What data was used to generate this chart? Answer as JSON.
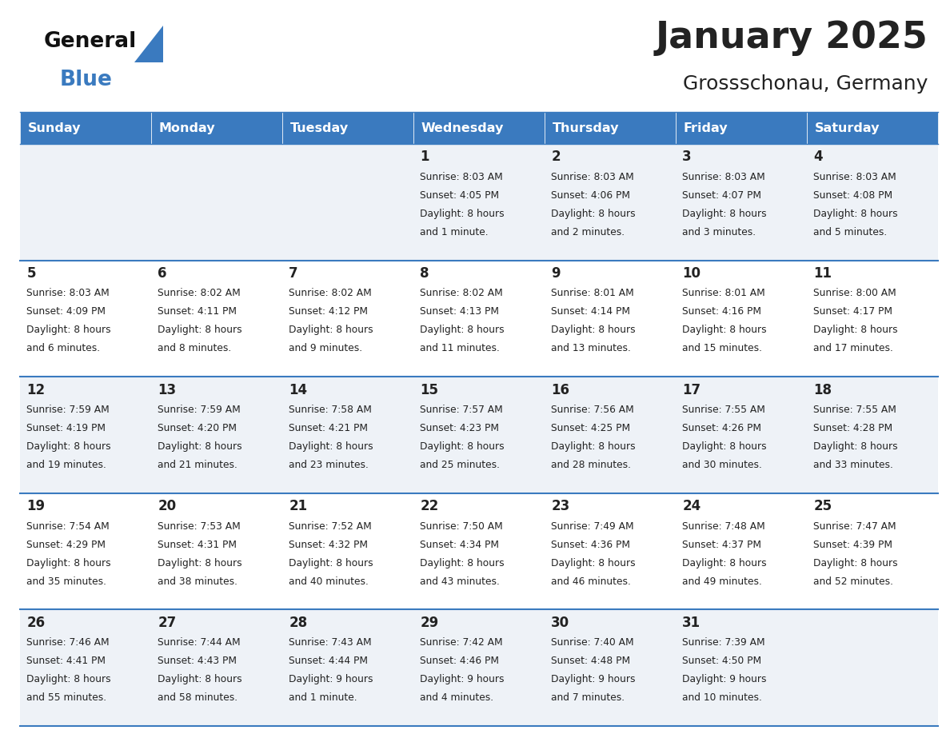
{
  "title": "January 2025",
  "subtitle": "Grossschonau, Germany",
  "header_color": "#3a7abf",
  "header_text_color": "#ffffff",
  "cell_bg_even": "#eef2f7",
  "cell_bg_odd": "#ffffff",
  "row_line_color": "#3a7abf",
  "text_color": "#222222",
  "day_names": [
    "Sunday",
    "Monday",
    "Tuesday",
    "Wednesday",
    "Thursday",
    "Friday",
    "Saturday"
  ],
  "days": [
    {
      "day": 1,
      "col": 3,
      "row": 0,
      "sunrise": "8:03 AM",
      "sunset": "4:05 PM",
      "dl1": "Daylight: 8 hours",
      "dl2": "and 1 minute."
    },
    {
      "day": 2,
      "col": 4,
      "row": 0,
      "sunrise": "8:03 AM",
      "sunset": "4:06 PM",
      "dl1": "Daylight: 8 hours",
      "dl2": "and 2 minutes."
    },
    {
      "day": 3,
      "col": 5,
      "row": 0,
      "sunrise": "8:03 AM",
      "sunset": "4:07 PM",
      "dl1": "Daylight: 8 hours",
      "dl2": "and 3 minutes."
    },
    {
      "day": 4,
      "col": 6,
      "row": 0,
      "sunrise": "8:03 AM",
      "sunset": "4:08 PM",
      "dl1": "Daylight: 8 hours",
      "dl2": "and 5 minutes."
    },
    {
      "day": 5,
      "col": 0,
      "row": 1,
      "sunrise": "8:03 AM",
      "sunset": "4:09 PM",
      "dl1": "Daylight: 8 hours",
      "dl2": "and 6 minutes."
    },
    {
      "day": 6,
      "col": 1,
      "row": 1,
      "sunrise": "8:02 AM",
      "sunset": "4:11 PM",
      "dl1": "Daylight: 8 hours",
      "dl2": "and 8 minutes."
    },
    {
      "day": 7,
      "col": 2,
      "row": 1,
      "sunrise": "8:02 AM",
      "sunset": "4:12 PM",
      "dl1": "Daylight: 8 hours",
      "dl2": "and 9 minutes."
    },
    {
      "day": 8,
      "col": 3,
      "row": 1,
      "sunrise": "8:02 AM",
      "sunset": "4:13 PM",
      "dl1": "Daylight: 8 hours",
      "dl2": "and 11 minutes."
    },
    {
      "day": 9,
      "col": 4,
      "row": 1,
      "sunrise": "8:01 AM",
      "sunset": "4:14 PM",
      "dl1": "Daylight: 8 hours",
      "dl2": "and 13 minutes."
    },
    {
      "day": 10,
      "col": 5,
      "row": 1,
      "sunrise": "8:01 AM",
      "sunset": "4:16 PM",
      "dl1": "Daylight: 8 hours",
      "dl2": "and 15 minutes."
    },
    {
      "day": 11,
      "col": 6,
      "row": 1,
      "sunrise": "8:00 AM",
      "sunset": "4:17 PM",
      "dl1": "Daylight: 8 hours",
      "dl2": "and 17 minutes."
    },
    {
      "day": 12,
      "col": 0,
      "row": 2,
      "sunrise": "7:59 AM",
      "sunset": "4:19 PM",
      "dl1": "Daylight: 8 hours",
      "dl2": "and 19 minutes."
    },
    {
      "day": 13,
      "col": 1,
      "row": 2,
      "sunrise": "7:59 AM",
      "sunset": "4:20 PM",
      "dl1": "Daylight: 8 hours",
      "dl2": "and 21 minutes."
    },
    {
      "day": 14,
      "col": 2,
      "row": 2,
      "sunrise": "7:58 AM",
      "sunset": "4:21 PM",
      "dl1": "Daylight: 8 hours",
      "dl2": "and 23 minutes."
    },
    {
      "day": 15,
      "col": 3,
      "row": 2,
      "sunrise": "7:57 AM",
      "sunset": "4:23 PM",
      "dl1": "Daylight: 8 hours",
      "dl2": "and 25 minutes."
    },
    {
      "day": 16,
      "col": 4,
      "row": 2,
      "sunrise": "7:56 AM",
      "sunset": "4:25 PM",
      "dl1": "Daylight: 8 hours",
      "dl2": "and 28 minutes."
    },
    {
      "day": 17,
      "col": 5,
      "row": 2,
      "sunrise": "7:55 AM",
      "sunset": "4:26 PM",
      "dl1": "Daylight: 8 hours",
      "dl2": "and 30 minutes."
    },
    {
      "day": 18,
      "col": 6,
      "row": 2,
      "sunrise": "7:55 AM",
      "sunset": "4:28 PM",
      "dl1": "Daylight: 8 hours",
      "dl2": "and 33 minutes."
    },
    {
      "day": 19,
      "col": 0,
      "row": 3,
      "sunrise": "7:54 AM",
      "sunset": "4:29 PM",
      "dl1": "Daylight: 8 hours",
      "dl2": "and 35 minutes."
    },
    {
      "day": 20,
      "col": 1,
      "row": 3,
      "sunrise": "7:53 AM",
      "sunset": "4:31 PM",
      "dl1": "Daylight: 8 hours",
      "dl2": "and 38 minutes."
    },
    {
      "day": 21,
      "col": 2,
      "row": 3,
      "sunrise": "7:52 AM",
      "sunset": "4:32 PM",
      "dl1": "Daylight: 8 hours",
      "dl2": "and 40 minutes."
    },
    {
      "day": 22,
      "col": 3,
      "row": 3,
      "sunrise": "7:50 AM",
      "sunset": "4:34 PM",
      "dl1": "Daylight: 8 hours",
      "dl2": "and 43 minutes."
    },
    {
      "day": 23,
      "col": 4,
      "row": 3,
      "sunrise": "7:49 AM",
      "sunset": "4:36 PM",
      "dl1": "Daylight: 8 hours",
      "dl2": "and 46 minutes."
    },
    {
      "day": 24,
      "col": 5,
      "row": 3,
      "sunrise": "7:48 AM",
      "sunset": "4:37 PM",
      "dl1": "Daylight: 8 hours",
      "dl2": "and 49 minutes."
    },
    {
      "day": 25,
      "col": 6,
      "row": 3,
      "sunrise": "7:47 AM",
      "sunset": "4:39 PM",
      "dl1": "Daylight: 8 hours",
      "dl2": "and 52 minutes."
    },
    {
      "day": 26,
      "col": 0,
      "row": 4,
      "sunrise": "7:46 AM",
      "sunset": "4:41 PM",
      "dl1": "Daylight: 8 hours",
      "dl2": "and 55 minutes."
    },
    {
      "day": 27,
      "col": 1,
      "row": 4,
      "sunrise": "7:44 AM",
      "sunset": "4:43 PM",
      "dl1": "Daylight: 8 hours",
      "dl2": "and 58 minutes."
    },
    {
      "day": 28,
      "col": 2,
      "row": 4,
      "sunrise": "7:43 AM",
      "sunset": "4:44 PM",
      "dl1": "Daylight: 9 hours",
      "dl2": "and 1 minute."
    },
    {
      "day": 29,
      "col": 3,
      "row": 4,
      "sunrise": "7:42 AM",
      "sunset": "4:46 PM",
      "dl1": "Daylight: 9 hours",
      "dl2": "and 4 minutes."
    },
    {
      "day": 30,
      "col": 4,
      "row": 4,
      "sunrise": "7:40 AM",
      "sunset": "4:48 PM",
      "dl1": "Daylight: 9 hours",
      "dl2": "and 7 minutes."
    },
    {
      "day": 31,
      "col": 5,
      "row": 4,
      "sunrise": "7:39 AM",
      "sunset": "4:50 PM",
      "dl1": "Daylight: 9 hours",
      "dl2": "and 10 minutes."
    }
  ]
}
